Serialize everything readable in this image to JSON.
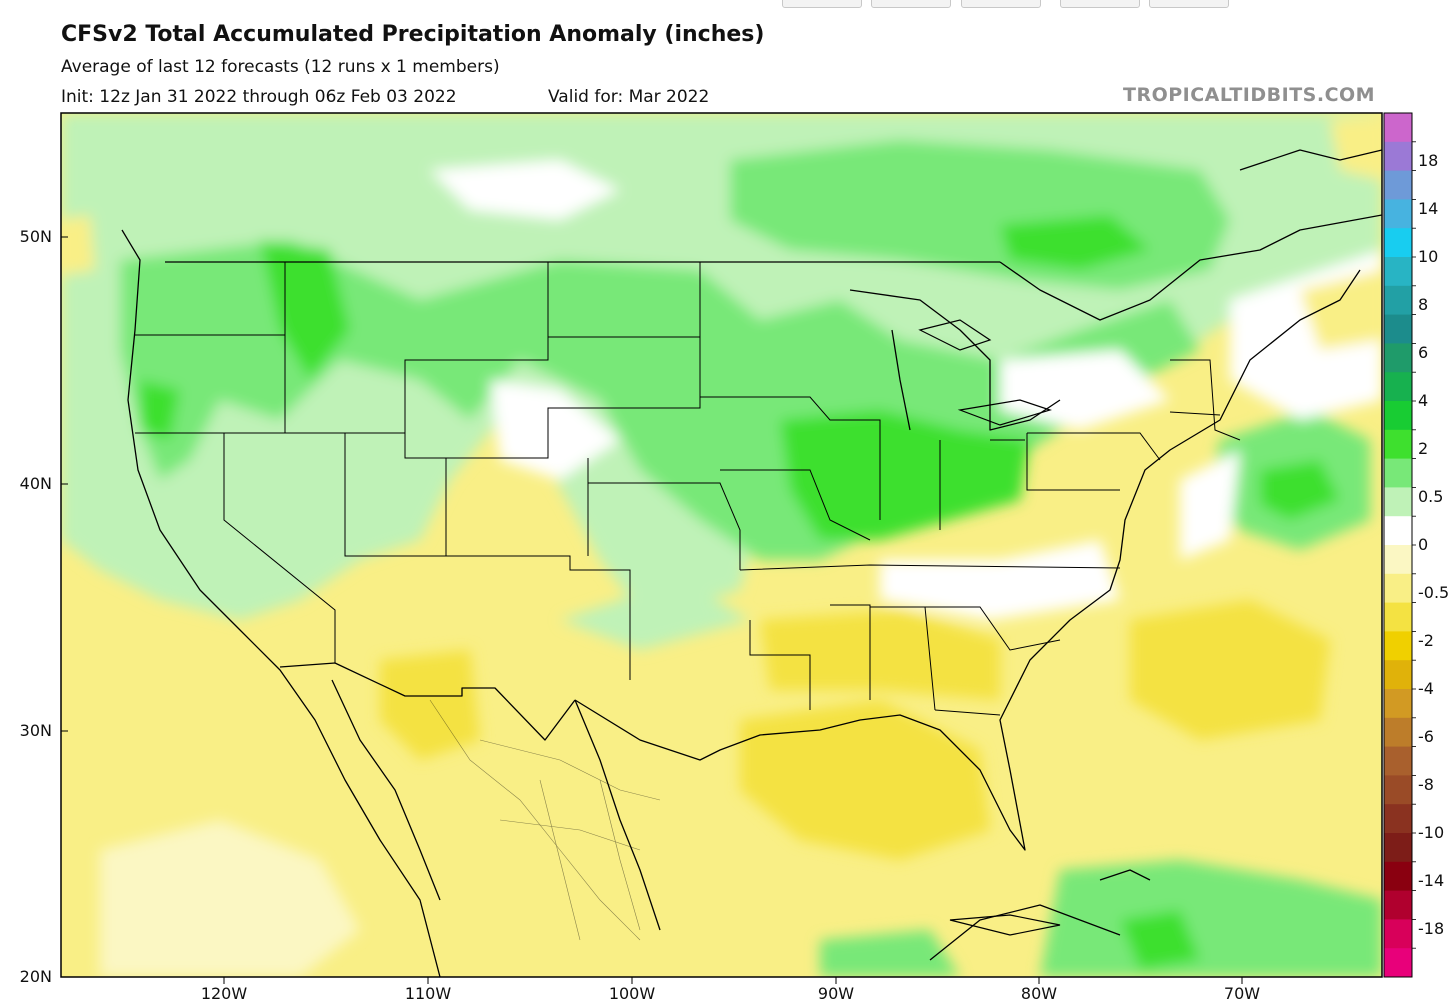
{
  "header": {
    "title": "CFSv2 Total Accumulated Precipitation Anomaly (inches)",
    "subtitle": "Average of last 12 forecasts (12 runs x 1 members)",
    "init": "Init: 12z Jan 31 2022 through 06z Feb 03 2022",
    "valid": "Valid for: Mar 2022",
    "brand": "TROPICALTIDBITS.COM"
  },
  "axes": {
    "lat_labels": [
      "50N",
      "40N",
      "30N",
      "20N"
    ],
    "lon_labels": [
      "120W",
      "110W",
      "100W",
      "90W",
      "80W",
      "70W"
    ]
  },
  "colorbar": {
    "labels": [
      "18",
      "14",
      "10",
      "8",
      "6",
      "4",
      "2",
      "0.5",
      "0",
      "-0.5",
      "-2",
      "-4",
      "-6",
      "-8",
      "-10",
      "-14",
      "-18"
    ],
    "colors": [
      "#cc66cc",
      "#9b79d6",
      "#6e9ad8",
      "#47b3e0",
      "#18cdf0",
      "#28b4c4",
      "#22a0a5",
      "#1c8c8c",
      "#1f9b6a",
      "#17b14f",
      "#18cc33",
      "#3ee02e",
      "#78e878",
      "#bff2b7",
      "#ffffff",
      "#fbf7c3",
      "#f9ef86",
      "#f4e242",
      "#f0d000",
      "#e0b20a",
      "#d29a23",
      "#bd7d2a",
      "#a9602d",
      "#9a4b27",
      "#8a3220",
      "#7d1d18",
      "#8a0010",
      "#b0002e",
      "#d8005a",
      "#e8007a"
    ]
  },
  "legend_colors": {
    "wet_light": "#bff2b7",
    "wet_medium": "#78e878",
    "wet_strong": "#3ee02e",
    "dry_light": "#fbf7c3",
    "dry_medium": "#f9ef86",
    "dry_strong": "#f4e242"
  }
}
